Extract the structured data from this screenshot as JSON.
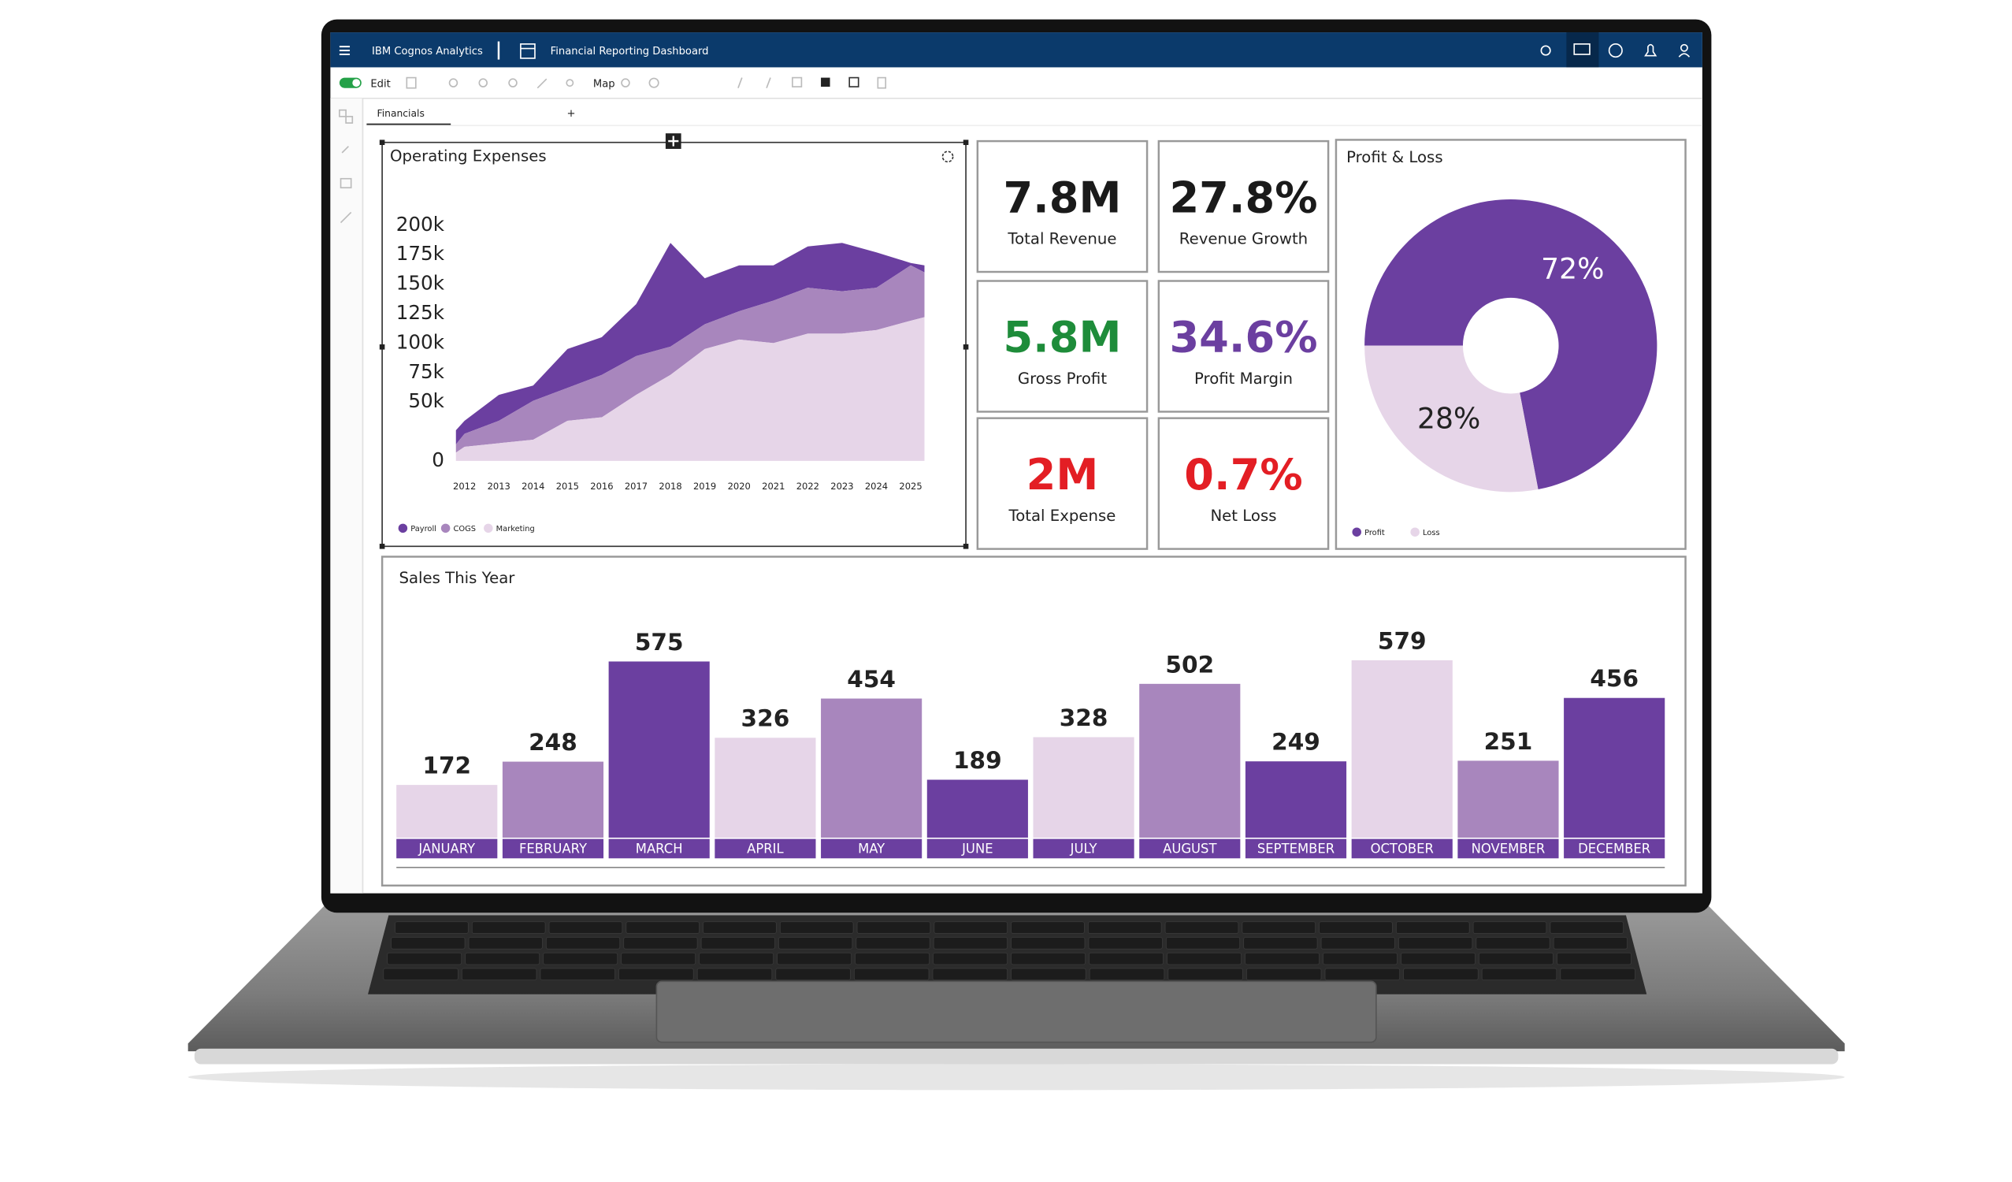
{
  "header": {
    "app_name": "IBM Cognos Analytics",
    "dashboard_name": "Financial Reporting Dashboard"
  },
  "toolbar": {
    "edit": "Edit",
    "map": "Map"
  },
  "tabs": [
    "Financials"
  ],
  "add_tab": "+",
  "kpis": [
    {
      "value": "7.8M",
      "label": "Total Revenue",
      "color": "#1a1a1a"
    },
    {
      "value": "27.8%",
      "label": "Revenue Growth",
      "color": "#1a1a1a"
    },
    {
      "value": "5.8M",
      "label": "Gross Profit",
      "color": "#1e8c3a"
    },
    {
      "value": "34.6%",
      "label": "Profit Margin",
      "color": "#6b3fa0"
    },
    {
      "value": "2M",
      "label": "Total Expense",
      "color": "#e31e24"
    },
    {
      "value": "0.7%",
      "label": "Net Loss",
      "color": "#e31e24"
    }
  ],
  "chart_data": [
    {
      "type": "area",
      "stacked": true,
      "title": "Operating Expenses",
      "x": [
        2011.75,
        2012,
        2013,
        2014,
        2015,
        2016,
        2017,
        2018,
        2019,
        2020,
        2021,
        2022,
        2023,
        2024,
        2025,
        2025.4
      ],
      "xlim": [
        2011.75,
        2025.4
      ],
      "xticks": [
        2012,
        2013,
        2014,
        2015,
        2016,
        2017,
        2018,
        2019,
        2020,
        2021,
        2022,
        2023,
        2024,
        2025
      ],
      "ylim": [
        0,
        200000
      ],
      "yticks": [
        0,
        {
          "value": 50000,
          "label": "50k"
        },
        {
          "value": 75000,
          "label": "75k"
        },
        {
          "value": 100000,
          "label": "100k"
        },
        {
          "value": 125000,
          "label": "125k"
        },
        {
          "value": 150000,
          "label": "150k"
        },
        {
          "value": 175000,
          "label": "175k"
        },
        {
          "value": 200000,
          "label": "200k"
        }
      ],
      "series": [
        {
          "name": "Payroll",
          "color": "#6b3fa0",
          "values": [
            12000,
            11000,
            22000,
            13000,
            33000,
            32000,
            44000,
            88000,
            39000,
            39000,
            30000,
            35000,
            41000,
            30000,
            2000,
            6000
          ]
        },
        {
          "name": "COGS",
          "color": "#a886bd",
          "values": [
            7000,
            11000,
            19000,
            33000,
            28000,
            36000,
            33000,
            24000,
            21000,
            24000,
            36000,
            39000,
            36000,
            36000,
            47000,
            38000
          ]
        },
        {
          "name": "Marketing",
          "color": "#e6d5e8",
          "values": [
            7000,
            12000,
            15000,
            18000,
            34000,
            37000,
            56000,
            73000,
            95000,
            103000,
            100000,
            108000,
            108000,
            111000,
            119000,
            122000
          ]
        }
      ]
    },
    {
      "type": "pie",
      "donut": true,
      "title": "Profit & Loss",
      "categories": [
        "Profit",
        "Loss"
      ],
      "values": [
        72,
        28
      ],
      "value_labels": [
        "72%",
        "28%"
      ],
      "colors": [
        "#6b3fa0",
        "#e6d5e8"
      ]
    },
    {
      "type": "bar",
      "title": "Sales This Year",
      "categories": [
        "JANUARY",
        "FEBRUARY",
        "MARCH",
        "APRIL",
        "MAY",
        "JUNE",
        "JULY",
        "AUGUST",
        "SEPTEMBER",
        "OCTOBER",
        "NOVEMBER",
        "DECEMBER"
      ],
      "values": [
        172,
        248,
        575,
        326,
        454,
        189,
        328,
        502,
        249,
        579,
        251,
        456
      ],
      "colors": [
        "#e6d5e8",
        "#a886bd",
        "#6b3fa0"
      ],
      "label_color": "#6b3fa0"
    }
  ]
}
